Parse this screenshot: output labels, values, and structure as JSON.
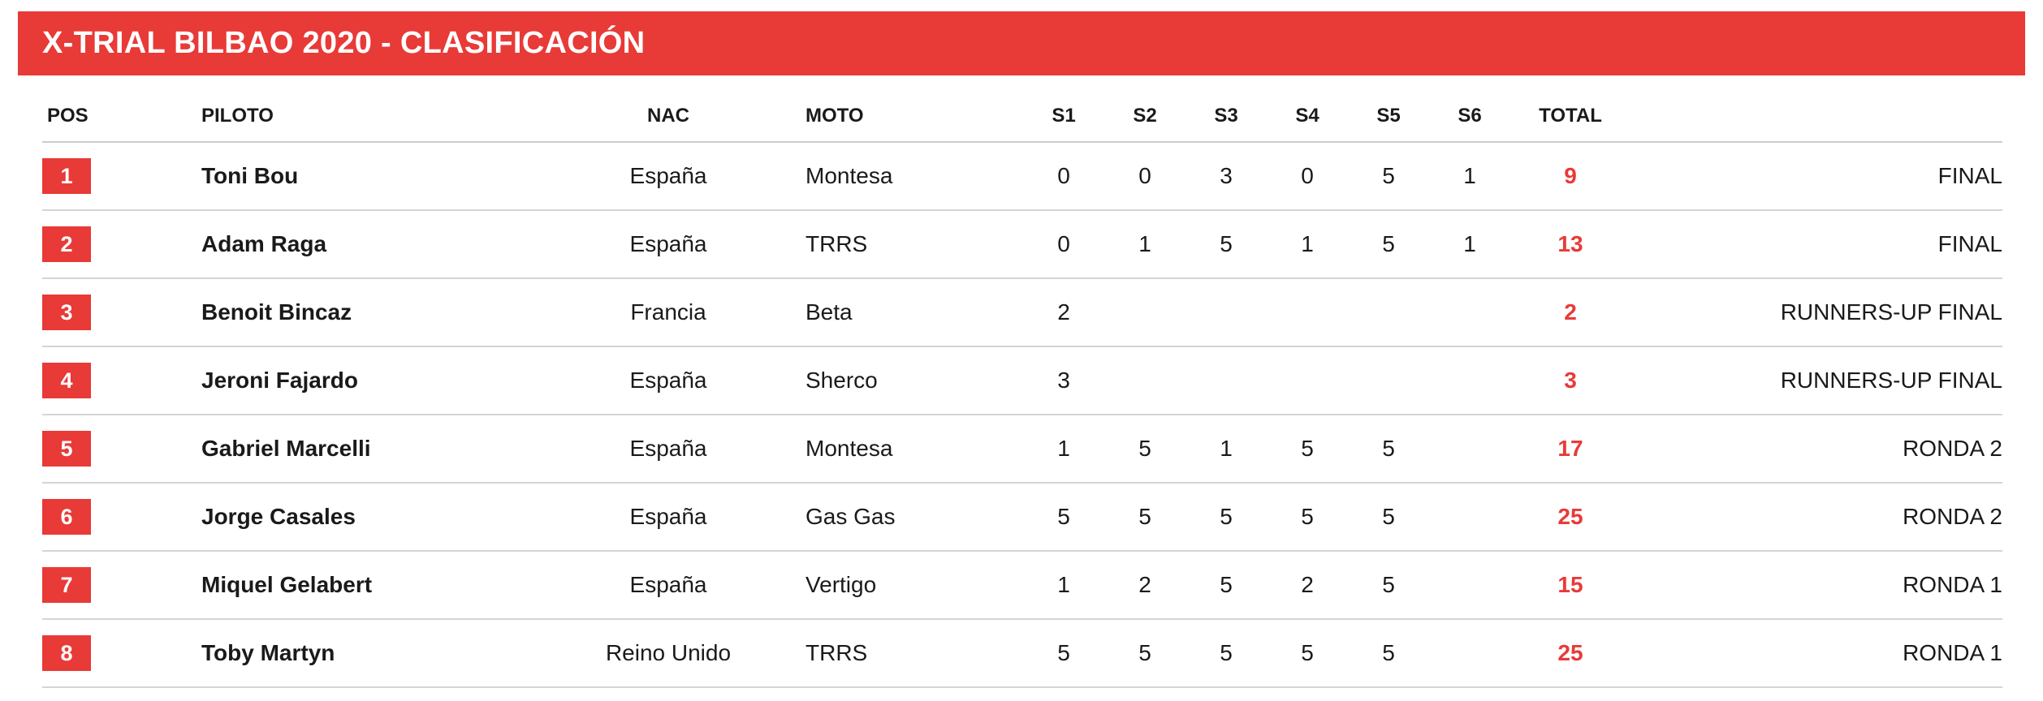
{
  "title": "X-TRIAL BILBAO 2020 - CLASIFICACIÓN",
  "colors": {
    "accent": "#e83a37",
    "text": "#1a1a1a",
    "divider": "#d4d4d4"
  },
  "columns": {
    "pos": "POS",
    "piloto": "PILOTO",
    "nac": "NAC",
    "moto": "MOTO",
    "s1": "S1",
    "s2": "S2",
    "s3": "S3",
    "s4": "S4",
    "s5": "S5",
    "s6": "S6",
    "total": "TOTAL",
    "status": ""
  },
  "rows": [
    {
      "pos": "1",
      "piloto": "Toni Bou",
      "nac": "España",
      "moto": "Montesa",
      "s1": "0",
      "s2": "0",
      "s3": "3",
      "s4": "0",
      "s5": "5",
      "s6": "1",
      "total": "9",
      "status": "FINAL"
    },
    {
      "pos": "2",
      "piloto": "Adam Raga",
      "nac": "España",
      "moto": "TRRS",
      "s1": "0",
      "s2": "1",
      "s3": "5",
      "s4": "1",
      "s5": "5",
      "s6": "1",
      "total": "13",
      "status": "FINAL"
    },
    {
      "pos": "3",
      "piloto": "Benoit Bincaz",
      "nac": "Francia",
      "moto": "Beta",
      "s1": "2",
      "s2": "",
      "s3": "",
      "s4": "",
      "s5": "",
      "s6": "",
      "total": "2",
      "status": "RUNNERS-UP FINAL"
    },
    {
      "pos": "4",
      "piloto": "Jeroni Fajardo",
      "nac": "España",
      "moto": "Sherco",
      "s1": "3",
      "s2": "",
      "s3": "",
      "s4": "",
      "s5": "",
      "s6": "",
      "total": "3",
      "status": "RUNNERS-UP FINAL"
    },
    {
      "pos": "5",
      "piloto": "Gabriel Marcelli",
      "nac": "España",
      "moto": "Montesa",
      "s1": "1",
      "s2": "5",
      "s3": "1",
      "s4": "5",
      "s5": "5",
      "s6": "",
      "total": "17",
      "status": "RONDA 2"
    },
    {
      "pos": "6",
      "piloto": "Jorge Casales",
      "nac": "España",
      "moto": "Gas Gas",
      "s1": "5",
      "s2": "5",
      "s3": "5",
      "s4": "5",
      "s5": "5",
      "s6": "",
      "total": "25",
      "status": "RONDA 2"
    },
    {
      "pos": "7",
      "piloto": "Miquel Gelabert",
      "nac": "España",
      "moto": "Vertigo",
      "s1": "1",
      "s2": "2",
      "s3": "5",
      "s4": "2",
      "s5": "5",
      "s6": "",
      "total": "15",
      "status": "RONDA 1"
    },
    {
      "pos": "8",
      "piloto": "Toby Martyn",
      "nac": "Reino Unido",
      "moto": "TRRS",
      "s1": "5",
      "s2": "5",
      "s3": "5",
      "s4": "5",
      "s5": "5",
      "s6": "",
      "total": "25",
      "status": "RONDA 1"
    }
  ]
}
